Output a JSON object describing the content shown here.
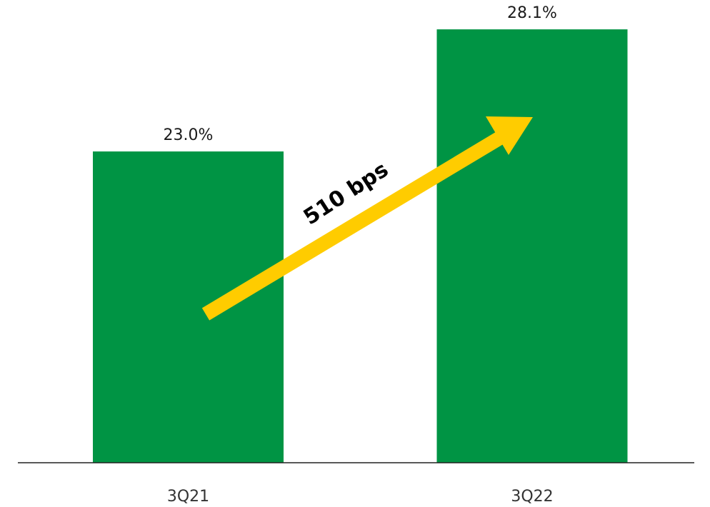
{
  "chart_data": {
    "type": "bar",
    "categories": [
      "3Q21",
      "3Q22"
    ],
    "values": [
      23.0,
      28.1
    ],
    "value_labels": [
      "23.0%",
      "28.1%"
    ],
    "color": "#009444",
    "ylim": [
      10,
      30
    ],
    "annotation": "510 bps",
    "annotation_color": "#ffcc00"
  }
}
